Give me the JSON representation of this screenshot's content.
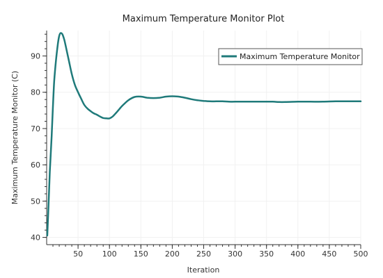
{
  "chart_data": {
    "type": "line",
    "title": "Maximum Temperature Monitor Plot",
    "xlabel": "Iteration",
    "ylabel": "Maximum Temperature Monitor (C)",
    "xlim": [
      0,
      500
    ],
    "ylim": [
      38,
      97
    ],
    "x_ticks": [
      50,
      100,
      150,
      200,
      250,
      300,
      350,
      400,
      450,
      500
    ],
    "y_ticks": [
      40,
      50,
      60,
      70,
      80,
      90
    ],
    "grid": true,
    "legend_position": "top-right",
    "series": [
      {
        "name": "Maximum Temperature Monitor",
        "color": "#1f7a7a",
        "x": [
          1,
          3,
          5,
          8,
          10,
          12,
          15,
          18,
          20,
          22,
          25,
          28,
          30,
          35,
          40,
          45,
          50,
          55,
          60,
          65,
          70,
          75,
          80,
          85,
          90,
          95,
          100,
          105,
          110,
          115,
          120,
          130,
          140,
          150,
          160,
          170,
          180,
          190,
          200,
          210,
          220,
          230,
          240,
          250,
          260,
          270,
          280,
          290,
          300,
          320,
          340,
          360,
          370,
          380,
          400,
          420,
          440,
          460,
          480,
          500
        ],
        "values": [
          40.5,
          49,
          58,
          68,
          76,
          83,
          89,
          93.5,
          95.5,
          96.3,
          96,
          94.5,
          93,
          89,
          85,
          82,
          80,
          78.2,
          76.5,
          75.5,
          74.8,
          74.2,
          73.8,
          73.3,
          72.9,
          72.8,
          72.8,
          73.3,
          74.2,
          75.2,
          76.2,
          77.8,
          78.7,
          78.8,
          78.5,
          78.4,
          78.5,
          78.8,
          78.9,
          78.8,
          78.5,
          78.1,
          77.8,
          77.6,
          77.5,
          77.5,
          77.5,
          77.4,
          77.4,
          77.4,
          77.4,
          77.4,
          77.3,
          77.3,
          77.4,
          77.4,
          77.4,
          77.5,
          77.5,
          77.5
        ]
      }
    ]
  }
}
